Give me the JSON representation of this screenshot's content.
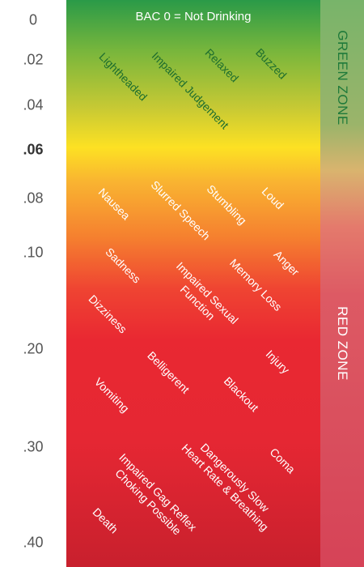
{
  "header": "BAC 0 = Not Drinking",
  "scale": [
    {
      "label": "0",
      "bold": false
    },
    {
      "label": ".02",
      "bold": false
    },
    {
      "label": ".04",
      "bold": false
    },
    {
      "label": ".06",
      "bold": true
    },
    {
      "label": ".08",
      "bold": false
    },
    {
      "label": ".10",
      "bold": false
    },
    {
      "label": ".20",
      "bold": false
    },
    {
      "label": ".30",
      "bold": false
    },
    {
      "label": ".40",
      "bold": false
    }
  ],
  "zones": {
    "green": "GREEN ZONE",
    "red": "RED ZONE"
  },
  "effects": {
    "lightheaded": "Lightheaded",
    "impaired_judgement": "Impaired Judgement",
    "relaxed": "Relaxed",
    "buzzed": "Buzzed",
    "nausea": "Nausea",
    "slurred_speech": "Slurred Speech",
    "stumbling": "Stumbling",
    "loud": "Loud",
    "sadness": "Sadness",
    "impaired_sexual_function_line1": "Impaired Sexual",
    "impaired_sexual_function_line2": "Function",
    "memory_loss": "Memory Loss",
    "anger": "Anger",
    "dizziness": "Dizziness",
    "belligerent": "Belligerent",
    "injury": "Injury",
    "vomiting": "Vomiting",
    "blackout": "Blackout",
    "dangerously_slow_line1": "Dangerously Slow",
    "dangerously_slow_line2": "Heart Rate & Breathing",
    "coma": "Coma",
    "impaired_gag_line1": "Impaired Gag Reflex",
    "impaired_gag_line2": "Choking Possible",
    "death": "Death"
  },
  "colors": {
    "green_top": "#2a9a48",
    "yellow": "#fde123",
    "orange": "#f57f2f",
    "red": "#e92832",
    "dark_red": "#c8202d",
    "zone_green_text": "#1f7a3a"
  }
}
